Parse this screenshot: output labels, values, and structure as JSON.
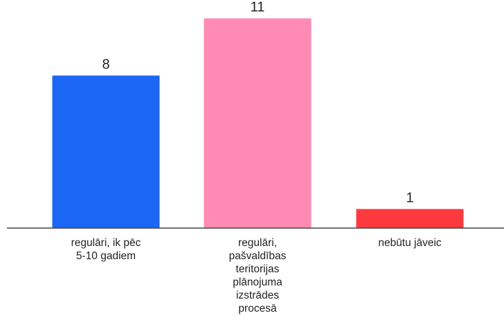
{
  "chart_data": {
    "type": "bar",
    "categories": [
      [
        "regulāri, ik pēc",
        "5-10 gadiem"
      ],
      [
        "regulāri,",
        "pašvaldības",
        "teritorijas",
        "plānojuma",
        "izstrādes",
        "procesā"
      ],
      [
        "nebūtu jāveic"
      ]
    ],
    "values": [
      8,
      11,
      1
    ],
    "value_labels": [
      "8",
      "11",
      "1"
    ],
    "colors": [
      "#1c66f5",
      "#ff8bb4",
      "#ff3a3f"
    ],
    "ylim": [
      0,
      11.6
    ],
    "grid": false,
    "axis_color": "#444444"
  }
}
